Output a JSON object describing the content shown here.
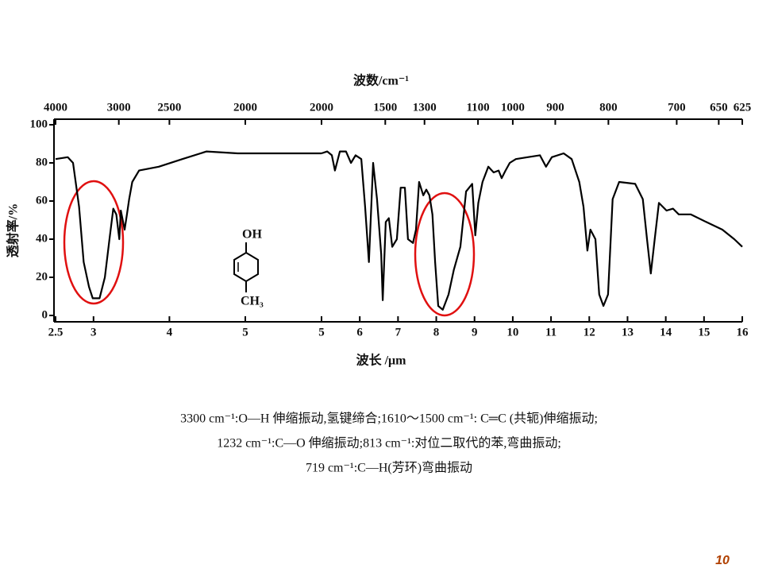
{
  "chart_data": {
    "type": "line",
    "x2label": "波数/cm⁻¹",
    "xlabel": "波长 /μm",
    "ylabel": "透射率/%",
    "ylim": [
      0,
      100
    ],
    "yticks": [
      0,
      20,
      40,
      60,
      80,
      100
    ],
    "color": "#000000",
    "panels": [
      {
        "xlim": [
          2.5,
          5
        ],
        "xticks": [
          2.5,
          3,
          4,
          5
        ],
        "x2ticks": [
          4000,
          3000,
          2500,
          2000
        ],
        "x": [
          2.5,
          2.66,
          2.73,
          2.81,
          2.87,
          2.94,
          2.99,
          3.08,
          3.15,
          3.21,
          3.26,
          3.3,
          3.34,
          3.36,
          3.41,
          3.44,
          3.47,
          3.51,
          3.6,
          3.86,
          4.17,
          4.49,
          4.9,
          5.0
        ],
        "values": [
          82,
          83,
          80,
          57,
          28,
          15,
          9,
          9,
          20,
          40,
          56,
          53,
          40,
          55,
          45,
          53,
          61,
          70,
          76,
          78,
          82,
          86,
          85,
          85
        ]
      },
      {
        "xlim": [
          5,
          16
        ],
        "xticks": [
          5,
          6,
          7,
          8,
          9,
          10,
          11,
          12,
          13,
          14,
          15,
          16
        ],
        "x2ticks": [
          2000,
          1500,
          1300,
          1100,
          1000,
          900,
          800,
          700,
          650,
          625
        ],
        "x": [
          5.0,
          5.15,
          5.27,
          5.35,
          5.48,
          5.64,
          5.77,
          5.89,
          6.04,
          6.14,
          6.24,
          6.35,
          6.45,
          6.56,
          6.6,
          6.68,
          6.76,
          6.85,
          6.97,
          7.07,
          7.18,
          7.26,
          7.39,
          7.47,
          7.55,
          7.66,
          7.74,
          7.82,
          7.9,
          7.97,
          8.05,
          8.17,
          8.32,
          8.46,
          8.63,
          8.78,
          8.94,
          9.02,
          9.1,
          9.21,
          9.36,
          9.5,
          9.63,
          9.71,
          9.81,
          9.92,
          10.08,
          10.39,
          10.71,
          10.87,
          11.02,
          11.33,
          11.54,
          11.74,
          11.85,
          11.95,
          12.03,
          12.16,
          12.26,
          12.37,
          12.49,
          12.61,
          12.78,
          13.2,
          13.4,
          13.51,
          13.61,
          13.71,
          13.82,
          14.02,
          14.19,
          14.34,
          14.65,
          15.06,
          15.48,
          15.79,
          16.0
        ],
        "values": [
          85,
          86,
          84,
          76,
          86,
          86,
          80,
          84,
          82,
          57,
          28,
          80,
          61,
          32,
          8,
          49,
          51,
          36,
          40,
          67,
          67,
          40,
          38,
          45,
          70,
          63,
          66,
          63,
          53,
          28,
          5,
          3,
          11,
          24,
          36,
          65,
          69,
          42,
          59,
          70,
          78,
          75,
          76,
          72,
          76,
          80,
          82,
          83,
          84,
          78,
          83,
          85,
          82,
          70,
          57,
          34,
          45,
          40,
          11,
          5,
          11,
          61,
          70,
          69,
          61,
          40,
          22,
          40,
          59,
          55,
          56,
          53,
          53,
          49,
          45,
          40,
          36
        ]
      }
    ],
    "structure": {
      "top": "OH",
      "bottom": "CH₃"
    },
    "notes": [
      "3300 cm⁻¹:O—H 伸缩振动,氢键缔合;1610～1500 cm⁻¹: C═C (共轭)伸缩振动;",
      "1232 cm⁻¹:C—O 伸缩振动;813 cm⁻¹:对位二取代的苯,弯曲振动;",
      "719 cm⁻¹:C—H(芳环)弯曲振动"
    ],
    "page_number": "10"
  }
}
